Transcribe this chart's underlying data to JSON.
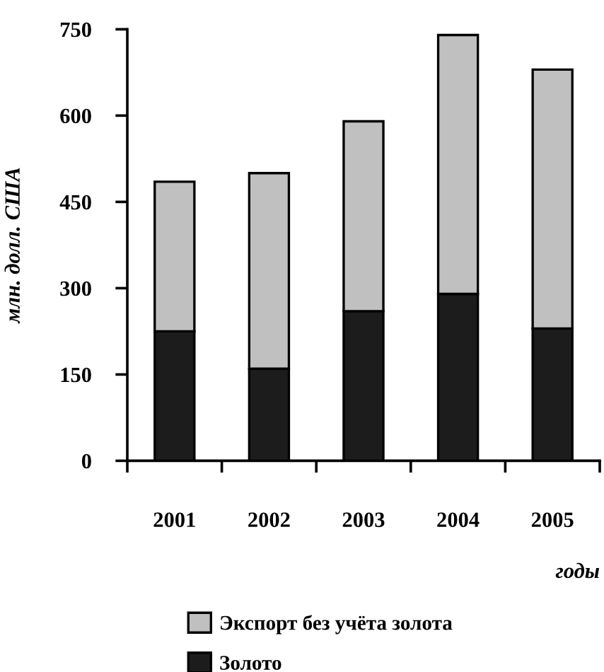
{
  "chart_data": {
    "type": "bar",
    "ylabel": "млн. долл. США",
    "xlabel": "годы",
    "categories": [
      "2001",
      "2002",
      "2003",
      "2004",
      "2005"
    ],
    "stacked": true,
    "series": [
      {
        "name": "Золото",
        "color": "#1c1c1c",
        "values": [
          225,
          160,
          260,
          290,
          230
        ]
      },
      {
        "name": "Экспорт без учёта золота",
        "color": "#c0c0c0",
        "values": [
          260,
          340,
          330,
          450,
          450
        ]
      }
    ],
    "ylim": [
      0,
      750
    ],
    "yticks": [
      0,
      150,
      300,
      450,
      600,
      750
    ],
    "legend": "bottom",
    "grid": false
  }
}
